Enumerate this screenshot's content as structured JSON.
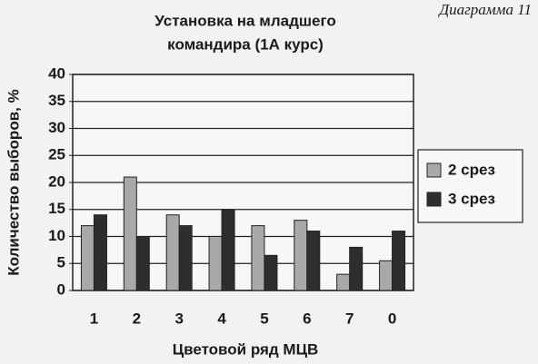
{
  "chart_data": {
    "type": "bar",
    "annotation": "Диаграмма 11",
    "title": [
      "Установка на младшего",
      "командира (1А курс)"
    ],
    "x_label": "Цветовой ряд МЦВ",
    "y_label": "Количество выборов, %",
    "categories": [
      "1",
      "2",
      "3",
      "4",
      "5",
      "6",
      "7",
      "0"
    ],
    "series": [
      {
        "name": "2 срез",
        "color": "#a9a9a9",
        "values": [
          12,
          21,
          14,
          10,
          12,
          13,
          3,
          5.5
        ]
      },
      {
        "name": "3 срез",
        "color": "#2e2e2e",
        "values": [
          14,
          10,
          12,
          15,
          6.5,
          11,
          8,
          11
        ]
      }
    ],
    "ylim": [
      0,
      40
    ],
    "yticks": [
      0,
      5,
      10,
      15,
      20,
      25,
      30,
      35,
      40
    ],
    "grid": true,
    "legend": "right"
  }
}
